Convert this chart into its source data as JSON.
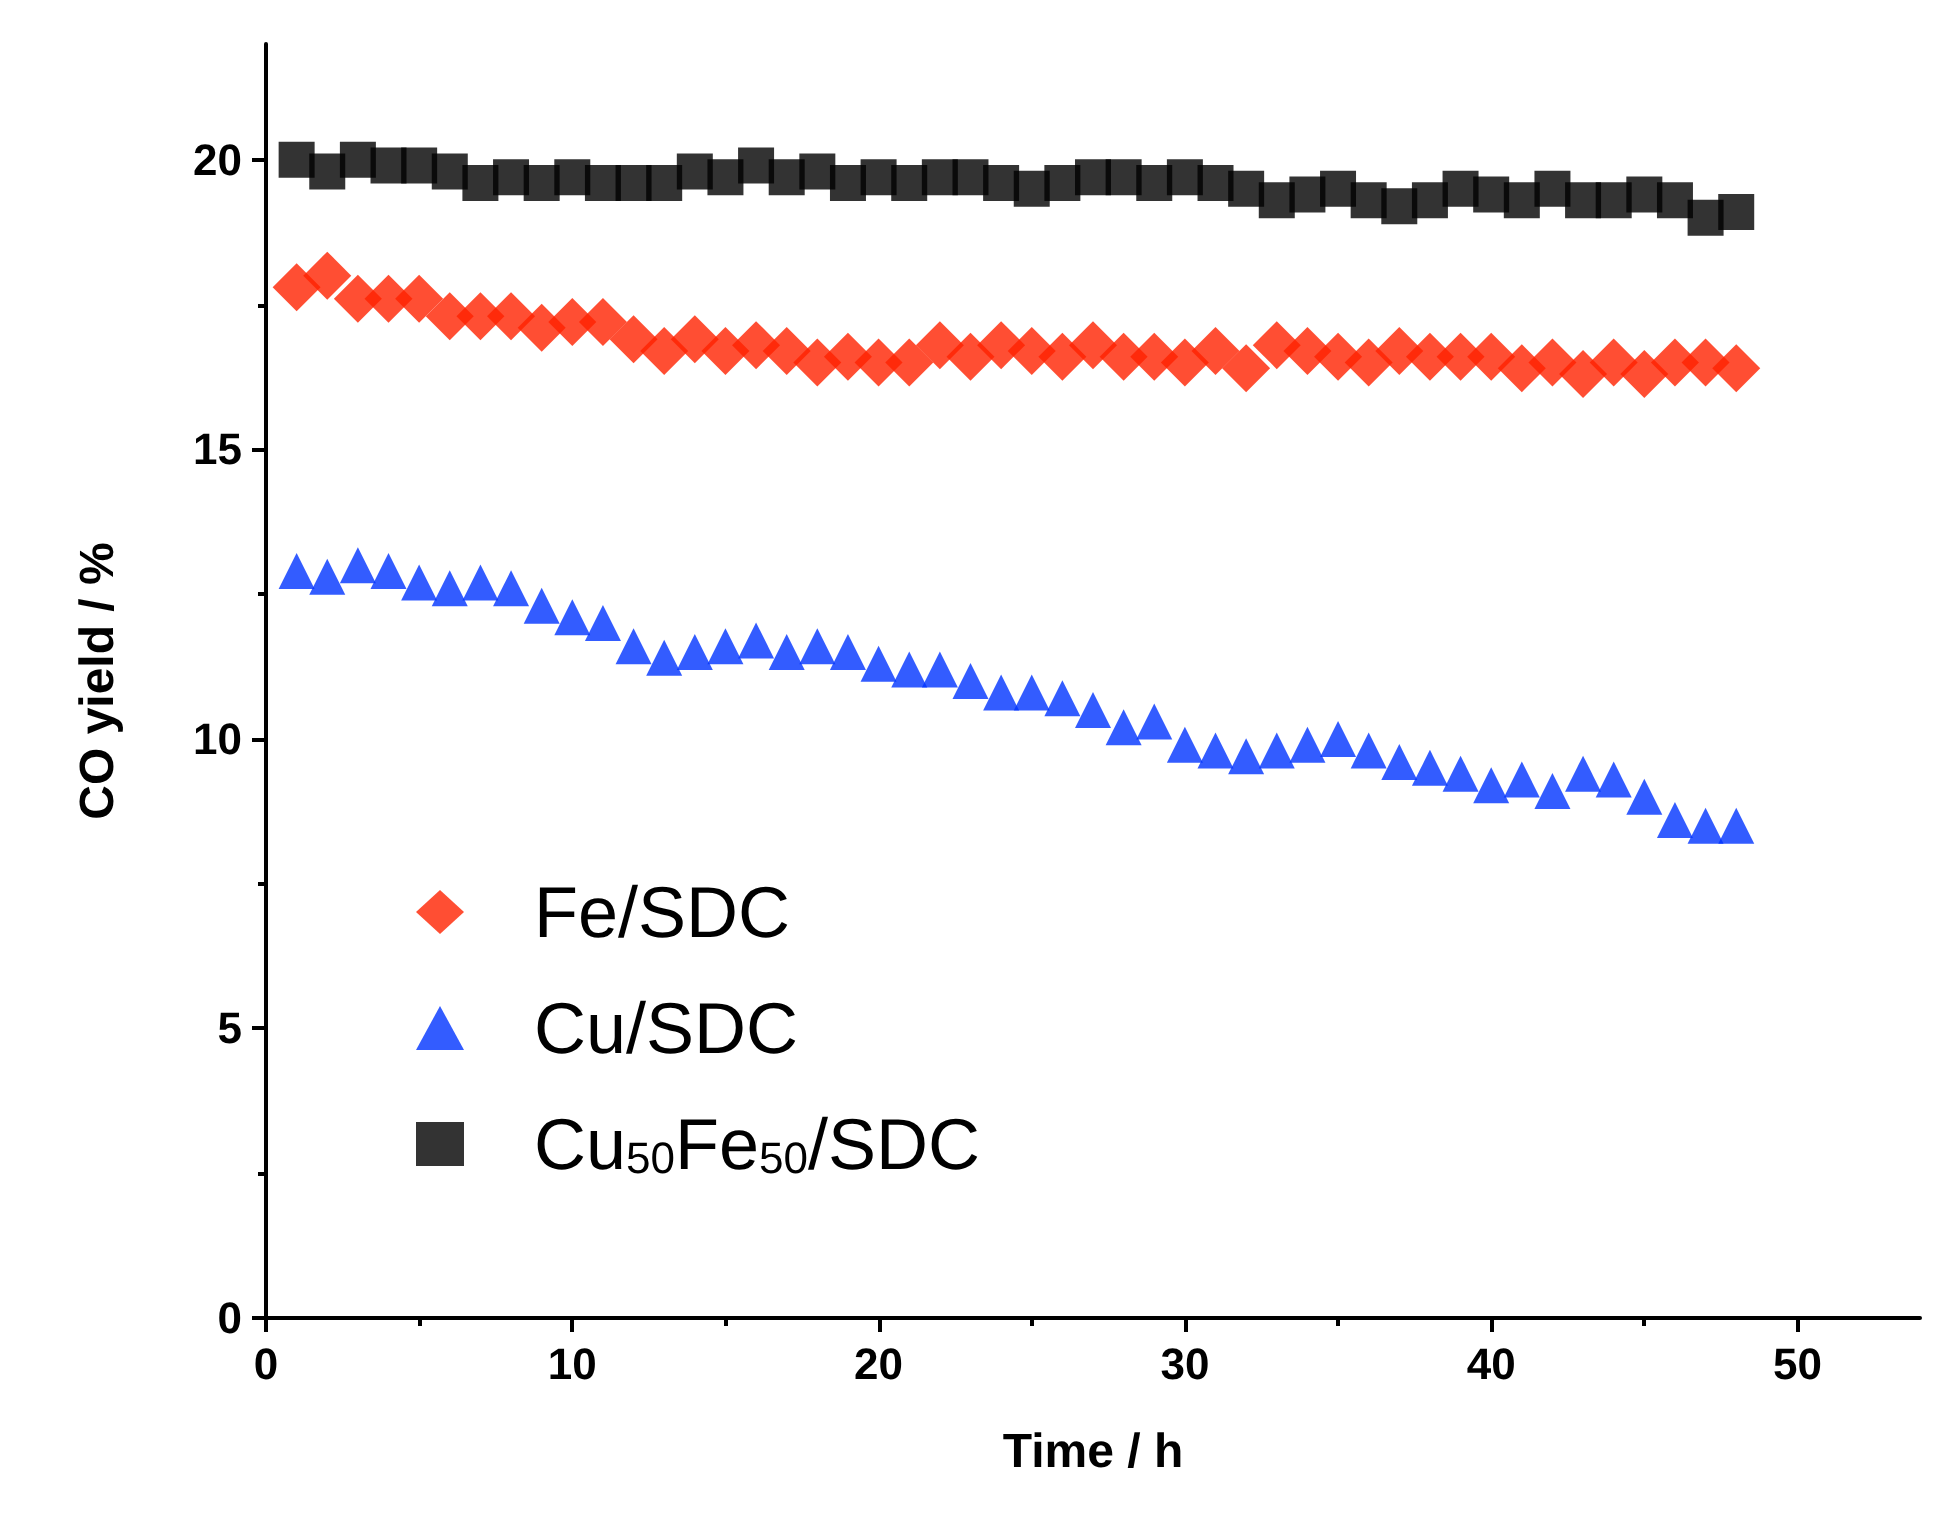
{
  "chart_data": {
    "type": "scatter",
    "xlabel": "Time / h",
    "ylabel": "CO yield / %",
    "x": [
      1,
      2,
      3,
      4,
      5,
      6,
      7,
      8,
      9,
      10,
      11,
      12,
      13,
      14,
      15,
      16,
      17,
      18,
      19,
      20,
      21,
      22,
      23,
      24,
      25,
      26,
      27,
      28,
      29,
      30,
      31,
      32,
      33,
      34,
      35,
      36,
      37,
      38,
      39,
      40,
      41,
      42,
      43,
      44,
      45,
      46,
      47,
      48
    ],
    "series": [
      {
        "name": "Fe/SDC",
        "color": "#ff2200",
        "marker": "diamond",
        "values": [
          17.8,
          18.0,
          17.6,
          17.6,
          17.6,
          17.3,
          17.3,
          17.3,
          17.1,
          17.2,
          17.2,
          16.9,
          16.7,
          16.9,
          16.7,
          16.8,
          16.7,
          16.5,
          16.6,
          16.5,
          16.5,
          16.8,
          16.6,
          16.8,
          16.7,
          16.6,
          16.8,
          16.6,
          16.6,
          16.5,
          16.7,
          16.4,
          16.8,
          16.7,
          16.6,
          16.5,
          16.7,
          16.6,
          16.6,
          16.6,
          16.4,
          16.5,
          16.3,
          16.5,
          16.3,
          16.5,
          16.5,
          16.4
        ]
      },
      {
        "name": "Cu/SDC",
        "color": "#0033ff",
        "marker": "triangle",
        "values": [
          12.9,
          12.8,
          13.0,
          12.9,
          12.7,
          12.6,
          12.7,
          12.6,
          12.3,
          12.1,
          12.0,
          11.6,
          11.4,
          11.5,
          11.6,
          11.7,
          11.5,
          11.6,
          11.5,
          11.3,
          11.2,
          11.2,
          11.0,
          10.8,
          10.8,
          10.7,
          10.5,
          10.2,
          10.3,
          9.9,
          9.8,
          9.7,
          9.8,
          9.9,
          10.0,
          9.8,
          9.6,
          9.5,
          9.4,
          9.2,
          9.3,
          9.1,
          9.4,
          9.3,
          9.0,
          8.6,
          8.5,
          8.5
        ]
      },
      {
        "name": "Cu$_{50}$Fe$_{50}$/SDC",
        "color": "#000000",
        "marker": "square",
        "values": [
          20.0,
          19.8,
          20.0,
          19.9,
          19.9,
          19.8,
          19.6,
          19.7,
          19.6,
          19.7,
          19.6,
          19.6,
          19.6,
          19.8,
          19.7,
          19.9,
          19.7,
          19.8,
          19.6,
          19.7,
          19.6,
          19.7,
          19.7,
          19.6,
          19.5,
          19.6,
          19.7,
          19.7,
          19.6,
          19.7,
          19.6,
          19.5,
          19.3,
          19.4,
          19.5,
          19.3,
          19.2,
          19.3,
          19.5,
          19.4,
          19.3,
          19.5,
          19.3,
          19.3,
          19.4,
          19.3,
          19.0,
          19.1
        ]
      }
    ],
    "xlim": [
      0,
      54
    ],
    "xticks": [
      0,
      10,
      20,
      30,
      40,
      50
    ],
    "ylim": [
      0,
      22
    ],
    "yticks": [
      0,
      5,
      10,
      15,
      20
    ],
    "legend": "bottom left",
    "grid": false
  }
}
